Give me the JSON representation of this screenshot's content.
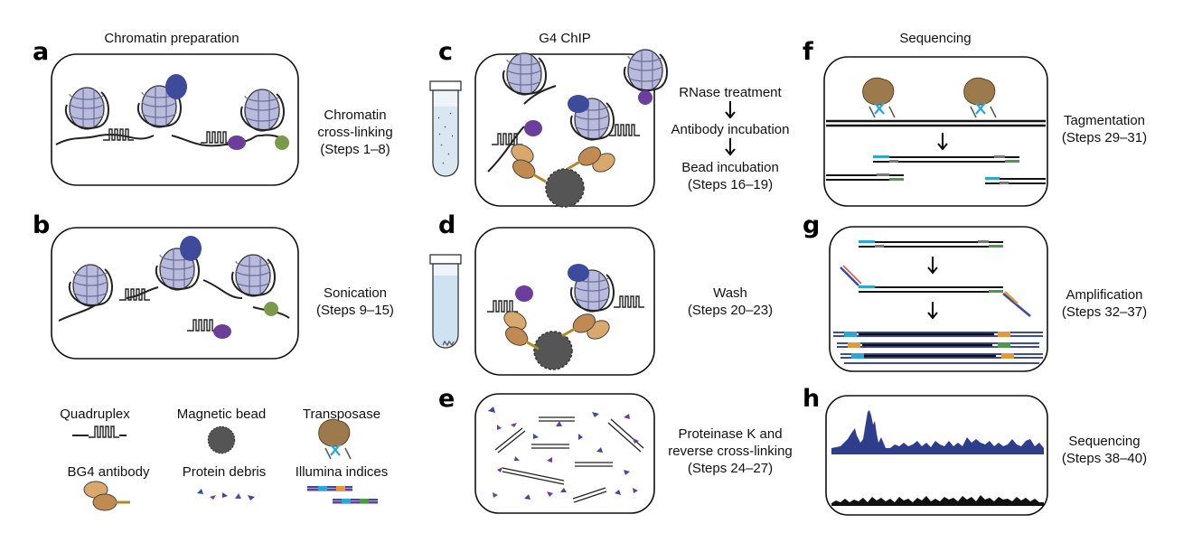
{
  "headers": {
    "col1": "Chromatin preparation",
    "col2": "G4 ChIP",
    "col3": "Sequencing"
  },
  "panels": {
    "a": {
      "letter": "a",
      "caption": [
        "Chromatin",
        "cross-linking",
        "(Steps 1–8)"
      ]
    },
    "b": {
      "letter": "b",
      "caption": [
        "Sonication",
        "(Steps 9–15)"
      ]
    },
    "c": {
      "letter": "c",
      "caption": [
        "RNase treatment",
        "Antibody incubation",
        "Bead incubation",
        "(Steps 16–19)"
      ]
    },
    "d": {
      "letter": "d",
      "caption": [
        "Wash",
        "(Steps 20–23)"
      ]
    },
    "e": {
      "letter": "e",
      "caption": [
        "Proteinase K and",
        "reverse cross-linking",
        "(Steps 24–27)"
      ]
    },
    "f": {
      "letter": "f",
      "caption": [
        "Tagmentation",
        "(Steps 29–31)"
      ]
    },
    "g": {
      "letter": "g",
      "caption": [
        "Amplification",
        "(Steps 32–37)"
      ]
    },
    "h": {
      "letter": "h",
      "caption": [
        "Sequencing",
        "(Steps 38–40)"
      ]
    }
  },
  "legend": {
    "quadruplex": "Quadruplex",
    "magnetic_bead": "Magnetic bead",
    "transposase": "Transposase",
    "antibody": "BG4 antibody",
    "debris": "Protein debris",
    "indices": "Illumina indices"
  },
  "colors": {
    "nucleosome": "#b9bbdc",
    "nucleosome_dark": "#6d6f99",
    "g4_blue": "#3e4a9a",
    "purple": "#6a3e9a",
    "green": "#7a9a4a",
    "antibody": "#d9a86c",
    "bead": "#555555",
    "transposase": "#9c7a4c",
    "index_blue": "#2aa7d8",
    "index_green": "#4a9a4a",
    "track_blue": "#2e3d8c",
    "track_black": "#111111"
  }
}
